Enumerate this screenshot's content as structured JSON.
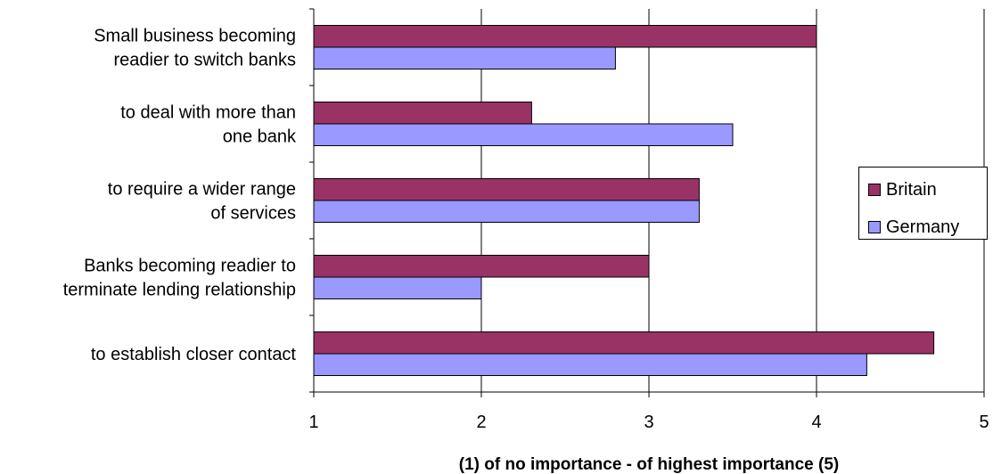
{
  "chart_data": {
    "type": "bar",
    "orientation": "horizontal",
    "categories": [
      [
        "Small business becoming",
        "readier to switch banks"
      ],
      [
        "to deal with more than",
        "one bank"
      ],
      [
        "to require a wider range",
        "of services"
      ],
      [
        "Banks becoming readier to",
        "terminate lending relationship"
      ],
      [
        "to establish closer contact"
      ]
    ],
    "series": [
      {
        "name": "Britain",
        "values": [
          4.0,
          2.3,
          3.3,
          3.0,
          4.7
        ],
        "color": "#993366"
      },
      {
        "name": "Germany",
        "values": [
          2.8,
          3.5,
          3.3,
          2.0,
          4.3
        ],
        "color": "#9999ff"
      }
    ],
    "xlabel": "(1) of no importance - of highest importance (5)",
    "xlim": [
      1,
      5
    ],
    "xticks": [
      "1",
      "2",
      "3",
      "4",
      "5"
    ],
    "grid": "vertical",
    "legend_position": "right"
  }
}
